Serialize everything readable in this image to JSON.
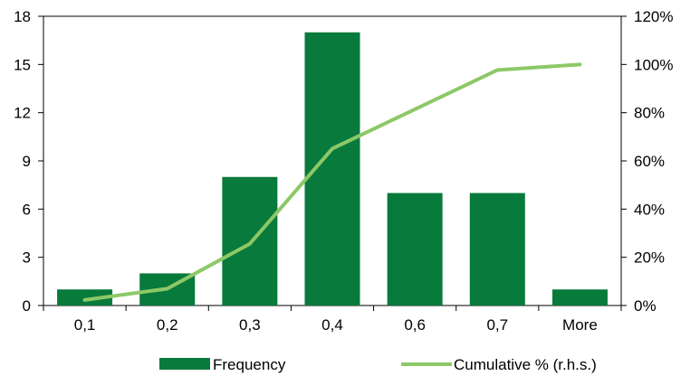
{
  "chart_data": {
    "type": "bar",
    "categories": [
      "0,1",
      "0,2",
      "0,3",
      "0,4",
      "0,6",
      "0,7",
      "More"
    ],
    "series": [
      {
        "name": "Frequency",
        "type": "bar",
        "axis": "left",
        "color": "#087a3c",
        "values": [
          1,
          2,
          8,
          17,
          7,
          7,
          1
        ]
      },
      {
        "name": "Cumulative % (r.h.s.)",
        "type": "line",
        "axis": "right",
        "color": "#8dc867",
        "values": [
          2.3,
          7,
          25.6,
          65.1,
          81.4,
          97.7,
          100
        ]
      }
    ],
    "y_left": {
      "lim": [
        0,
        18
      ],
      "ticks": [
        "0",
        "3",
        "6",
        "9",
        "12",
        "15",
        "18"
      ]
    },
    "y_right": {
      "lim": [
        0,
        120
      ],
      "ticks": [
        "0%",
        "20%",
        "40%",
        "60%",
        "80%",
        "100%",
        "120%"
      ]
    },
    "grid": false,
    "legend": "bottom"
  }
}
